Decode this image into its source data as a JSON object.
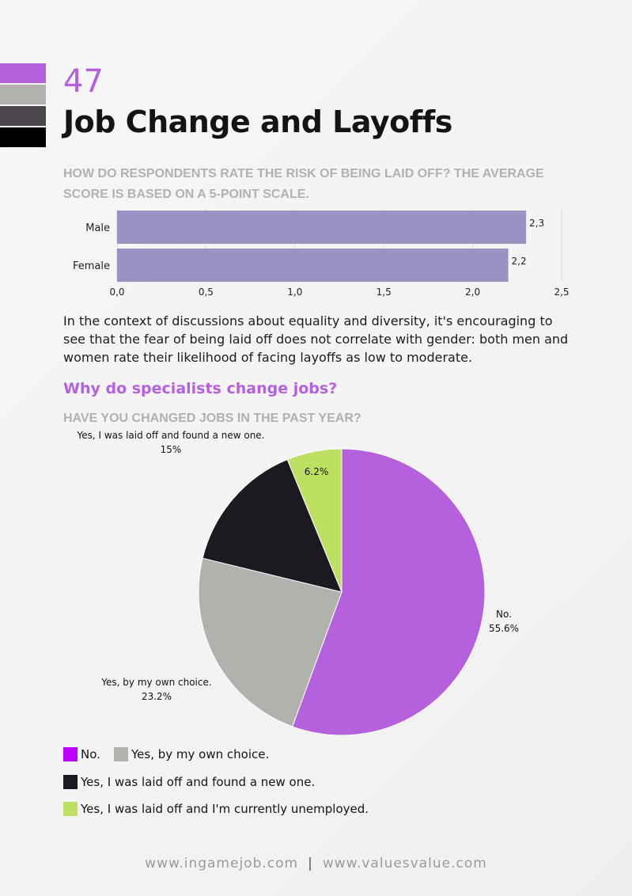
{
  "page": {
    "number": "47",
    "title": "Job Change and Layoffs",
    "palette": [
      "#b561de",
      "#b1b1ad",
      "#4b464b",
      "#000000"
    ]
  },
  "layoff_question": "HOW DO RESPONDENTS RATE THE RISK OF BEING LAID OFF? THE AVERAGE SCORE IS BASED ON A 5-POINT SCALE.",
  "body_text": "In the context of discussions about equality and diversity, it's encouraging to see that the fear of being laid off does not correlate with gender: both men and women rate their likelihood of facing layoffs as low to moderate.",
  "section_heading": "Why do specialists change jobs?",
  "job_change_question": "HAVE YOU CHANGED JOBS IN THE PAST YEAR?",
  "chart_data": [
    {
      "type": "bar",
      "orientation": "horizontal",
      "categories": [
        "Male",
        "Female"
      ],
      "values": [
        2.3,
        2.2
      ],
      "value_labels": [
        "2,3",
        "2,2"
      ],
      "xlim": [
        0,
        2.5
      ],
      "x_ticks": [
        "0,0",
        "0,5",
        "1,0",
        "1,5",
        "2,0",
        "2,5"
      ],
      "tick_values": [
        0,
        0.5,
        1.0,
        1.5,
        2.0,
        2.5
      ],
      "grid": true,
      "color": "#9b92c4"
    },
    {
      "type": "pie",
      "slices": [
        {
          "label": "No.",
          "value": 55.6,
          "pct_label": "55.6%",
          "color": "#b561de"
        },
        {
          "label": "Yes, by my own choice.",
          "value": 23.2,
          "pct_label": "23.2%",
          "color": "#b1b1ad"
        },
        {
          "label": "Yes, I was laid off and found a new one.",
          "value": 15,
          "pct_label": "15%",
          "color": "#1c1a20"
        },
        {
          "label": "Yes, I was laid off and I'm currently unemployed.",
          "value": 6.2,
          "pct_label": "6.2%",
          "color": "#bde063"
        }
      ],
      "legend": [
        {
          "label": "No.",
          "color": "#bd00ff"
        },
        {
          "label": "Yes, by my own choice.",
          "color": "#b1b1ad"
        },
        {
          "label": "Yes, I was laid off and found a new one.",
          "color": "#1c1a20"
        },
        {
          "label": "Yes, I was laid off and I'm currently unemployed.",
          "color": "#bde063"
        }
      ],
      "legend_position": "bottom"
    }
  ],
  "footer": {
    "left": "www.ingamejob.com",
    "separator": "|",
    "right": "www.valuesvalue.com"
  }
}
